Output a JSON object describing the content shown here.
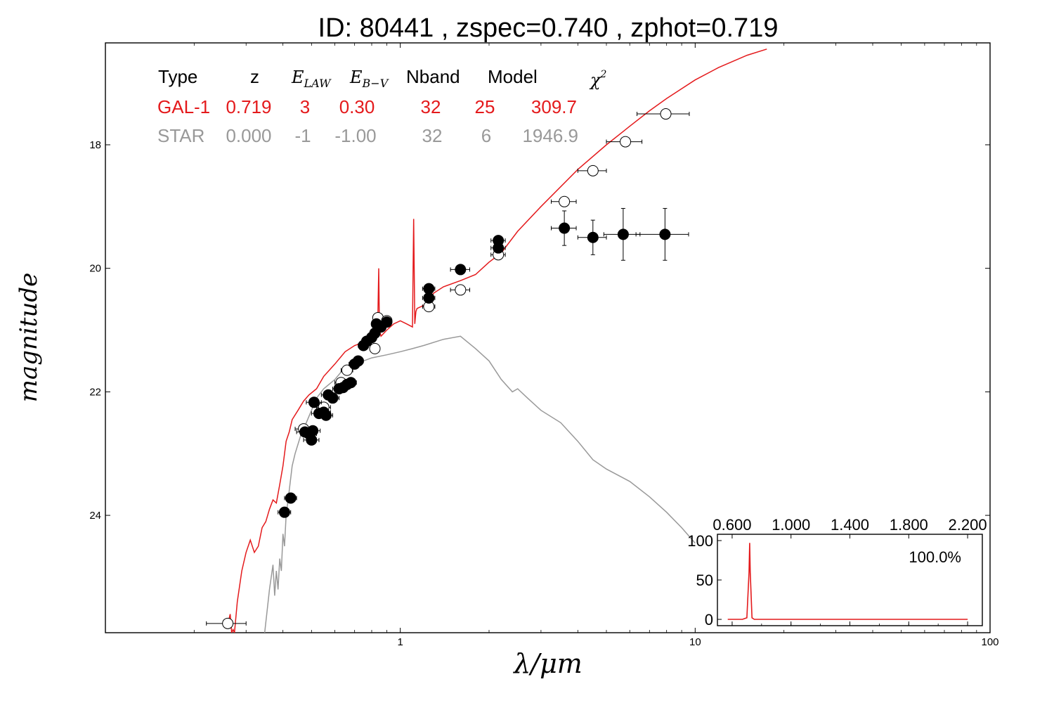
{
  "title": "ID:  80441 , zspec=0.740 , zphot=0.719",
  "axes": {
    "xlabel": "λ/μm",
    "ylabel": "magnitude",
    "xscale": "log",
    "xlim": [
      0.1,
      100
    ],
    "ylim": [
      25.9,
      16.35
    ],
    "y_inverted": true,
    "x_ticks": [
      "1",
      "10",
      "100"
    ],
    "x_tick_values": [
      1,
      10,
      100
    ],
    "y_ticks": [
      "18",
      "20",
      "22",
      "24"
    ],
    "y_tick_values": [
      18,
      20,
      22,
      24
    ]
  },
  "table": {
    "headers": [
      "Type",
      "z",
      "E_LAW",
      "E_B−V",
      "Nband",
      "Model",
      "χ²"
    ],
    "rows": [
      {
        "color": "#e41a1c",
        "cells": [
          "GAL-1",
          "0.719",
          "3",
          "0.30",
          "32",
          "25",
          "309.7"
        ]
      },
      {
        "color": "#999999",
        "cells": [
          "STAR",
          "0.000",
          "-1",
          "-1.00",
          "32",
          "6",
          "1946.9"
        ]
      }
    ]
  },
  "colors": {
    "galaxy": "#e41a1c",
    "star": "#999999",
    "points": "#000000"
  },
  "chart_data": [
    {
      "type": "line",
      "title": "ID:  80441 , zspec=0.740 , zphot=0.719",
      "xlabel": "λ/μm",
      "ylabel": "magnitude",
      "series": [
        {
          "color": "#e41a1c",
          "x": [
            0.262,
            0.265,
            0.268,
            0.271,
            0.274,
            0.28,
            0.29,
            0.3,
            0.31,
            0.32,
            0.33,
            0.34,
            0.35,
            0.36,
            0.37,
            0.38,
            0.39,
            0.4,
            0.41,
            0.42,
            0.43,
            0.45,
            0.47,
            0.49,
            0.52,
            0.55,
            0.6,
            0.65,
            0.7,
            0.75,
            0.8,
            0.83,
            0.84,
            0.845,
            0.85,
            0.86,
            0.9,
            0.95,
            1.0,
            1.05,
            1.1,
            1.11,
            1.12,
            1.13,
            1.14,
            1.2,
            1.3,
            1.4,
            1.6,
            1.8,
            2.0,
            2.2,
            2.5,
            3.0,
            4.0,
            5.0,
            6.0,
            7.0,
            8.0,
            10.0,
            12.0,
            15.0,
            17.5
          ],
          "y": [
            25.7,
            25.6,
            25.9,
            25.85,
            25.9,
            25.4,
            24.9,
            24.6,
            24.4,
            24.6,
            24.5,
            24.2,
            24.1,
            23.9,
            23.75,
            23.8,
            23.5,
            23.2,
            22.8,
            22.65,
            22.45,
            22.3,
            22.15,
            22.05,
            21.95,
            21.75,
            21.55,
            21.35,
            21.25,
            21.2,
            21.15,
            21.1,
            20.7,
            20.0,
            21.0,
            21.1,
            21.0,
            20.9,
            20.85,
            20.9,
            20.95,
            19.2,
            20.9,
            20.7,
            20.65,
            20.6,
            20.4,
            20.3,
            20.2,
            20.1,
            19.9,
            19.75,
            19.4,
            19.0,
            18.4,
            18.0,
            17.7,
            17.45,
            17.25,
            16.95,
            16.75,
            16.55,
            16.45
          ]
        },
        {
          "color": "#999999",
          "x": [
            0.345,
            0.36,
            0.37,
            0.375,
            0.38,
            0.385,
            0.39,
            0.395,
            0.4,
            0.405,
            0.41,
            0.42,
            0.43,
            0.44,
            0.46,
            0.48,
            0.5,
            0.52,
            0.55,
            0.6,
            0.65,
            0.7,
            0.75,
            0.8,
            0.9,
            1.0,
            1.1,
            1.2,
            1.4,
            1.6,
            1.8,
            2.0,
            2.2,
            2.4,
            2.5,
            2.7,
            3.0,
            3.5,
            4.0,
            4.5,
            5.0,
            6.0,
            7.0,
            8.0,
            9.0,
            10.0
          ],
          "y": [
            26.0,
            25.2,
            24.8,
            25.3,
            24.9,
            25.2,
            24.7,
            24.9,
            24.3,
            24.5,
            24.0,
            23.6,
            23.2,
            23.0,
            22.7,
            22.5,
            22.3,
            22.1,
            21.95,
            21.8,
            21.6,
            21.55,
            21.5,
            21.45,
            21.4,
            21.35,
            21.3,
            21.25,
            21.15,
            21.1,
            21.3,
            21.5,
            21.8,
            22.0,
            21.95,
            22.1,
            22.3,
            22.5,
            22.8,
            23.1,
            23.25,
            23.45,
            23.7,
            23.95,
            24.2,
            24.45
          ]
        }
      ],
      "points_filled": [
        {
          "x": 0.405,
          "y": 23.95,
          "xerr": 0.02
        },
        {
          "x": 0.425,
          "y": 23.72,
          "xerr": 0.02
        },
        {
          "x": 0.475,
          "y": 22.65,
          "xerr": 0.03
        },
        {
          "x": 0.49,
          "y": 22.68,
          "xerr": 0.03
        },
        {
          "x": 0.5,
          "y": 22.78,
          "xerr": 0.03
        },
        {
          "x": 0.505,
          "y": 22.63,
          "xerr": 0.03
        },
        {
          "x": 0.51,
          "y": 22.17,
          "xerr": 0.03
        },
        {
          "x": 0.53,
          "y": 22.35,
          "xerr": 0.03
        },
        {
          "x": 0.55,
          "y": 22.33,
          "xerr": 0.03
        },
        {
          "x": 0.56,
          "y": 22.38,
          "xerr": 0.03
        },
        {
          "x": 0.57,
          "y": 22.05,
          "xerr": 0.03
        },
        {
          "x": 0.59,
          "y": 22.1,
          "xerr": 0.03
        },
        {
          "x": 0.62,
          "y": 21.95,
          "xerr": 0.03
        },
        {
          "x": 0.64,
          "y": 21.93,
          "xerr": 0.03
        },
        {
          "x": 0.66,
          "y": 21.88,
          "xerr": 0.03
        },
        {
          "x": 0.68,
          "y": 21.85,
          "xerr": 0.03
        },
        {
          "x": 0.7,
          "y": 21.55,
          "xerr": 0.03
        },
        {
          "x": 0.72,
          "y": 21.5,
          "xerr": 0.03
        },
        {
          "x": 0.75,
          "y": 21.25,
          "xerr": 0.03
        },
        {
          "x": 0.77,
          "y": 21.18,
          "xerr": 0.03
        },
        {
          "x": 0.8,
          "y": 21.12,
          "xerr": 0.03
        },
        {
          "x": 0.82,
          "y": 21.05,
          "xerr": 0.03
        },
        {
          "x": 0.83,
          "y": 20.9,
          "xerr": 0.03
        },
        {
          "x": 0.86,
          "y": 20.95,
          "xerr": 0.03
        },
        {
          "x": 0.9,
          "y": 20.87,
          "xerr": 0.03
        },
        {
          "x": 1.25,
          "y": 20.48,
          "xerr": 0.06
        },
        {
          "x": 1.25,
          "y": 20.33,
          "xerr": 0.06
        },
        {
          "x": 1.6,
          "y": 20.02,
          "xerr": 0.12
        },
        {
          "x": 2.15,
          "y": 19.55,
          "xerr": 0.12
        },
        {
          "x": 2.15,
          "y": 19.67,
          "xerr": 0.12
        },
        {
          "x": 3.6,
          "y": 19.35,
          "yerr": 0.28,
          "xerr": 0.35
        },
        {
          "x": 4.5,
          "y": 19.5,
          "yerr": 0.28,
          "xerr": 0.5
        },
        {
          "x": 5.7,
          "y": 19.45,
          "yerr": 0.42,
          "xerr": 0.8
        },
        {
          "x": 7.9,
          "y": 19.45,
          "yerr": 0.42,
          "xerr": 1.6
        }
      ],
      "points_open": [
        {
          "x": 0.26,
          "y": 25.75,
          "xerr": 0.04
        },
        {
          "x": 0.47,
          "y": 22.6,
          "xerr": 0.03
        },
        {
          "x": 0.55,
          "y": 22.25,
          "xerr": 0.03
        },
        {
          "x": 0.63,
          "y": 21.85,
          "xerr": 0.03
        },
        {
          "x": 0.66,
          "y": 21.65,
          "xerr": 0.03
        },
        {
          "x": 0.82,
          "y": 21.3,
          "xerr": 0.03
        },
        {
          "x": 0.84,
          "y": 20.8,
          "xerr": 0.03
        },
        {
          "x": 0.9,
          "y": 20.85,
          "xerr": 0.03
        },
        {
          "x": 1.25,
          "y": 20.62,
          "xerr": 0.06
        },
        {
          "x": 1.6,
          "y": 20.35,
          "xerr": 0.12
        },
        {
          "x": 2.15,
          "y": 19.78,
          "xerr": 0.12
        },
        {
          "x": 3.6,
          "y": 18.92,
          "xerr": 0.35
        },
        {
          "x": 4.5,
          "y": 18.42,
          "xerr": 0.5
        },
        {
          "x": 5.8,
          "y": 17.95,
          "xerr": 0.8
        },
        {
          "x": 7.95,
          "y": 17.5,
          "xerr": 1.6
        }
      ]
    },
    {
      "type": "line",
      "xlim": [
        0.5,
        2.3
      ],
      "ylim": [
        -8,
        108
      ],
      "x_ticks": [
        "0.600",
        "1.000",
        "1.400",
        "1.800",
        "2.200"
      ],
      "x_tick_values": [
        0.6,
        1.0,
        1.4,
        1.8,
        2.2
      ],
      "y_ticks": [
        "0",
        "50",
        "100"
      ],
      "y_tick_values": [
        0,
        50,
        100
      ],
      "annotation": "100.0%",
      "series": [
        {
          "color": "#e41a1c",
          "x": [
            0.57,
            0.67,
            0.7,
            0.715,
            0.719,
            0.723,
            0.735,
            0.75,
            2.2
          ],
          "y": [
            0,
            0,
            2,
            60,
            97,
            60,
            2,
            0,
            0
          ]
        }
      ]
    }
  ]
}
